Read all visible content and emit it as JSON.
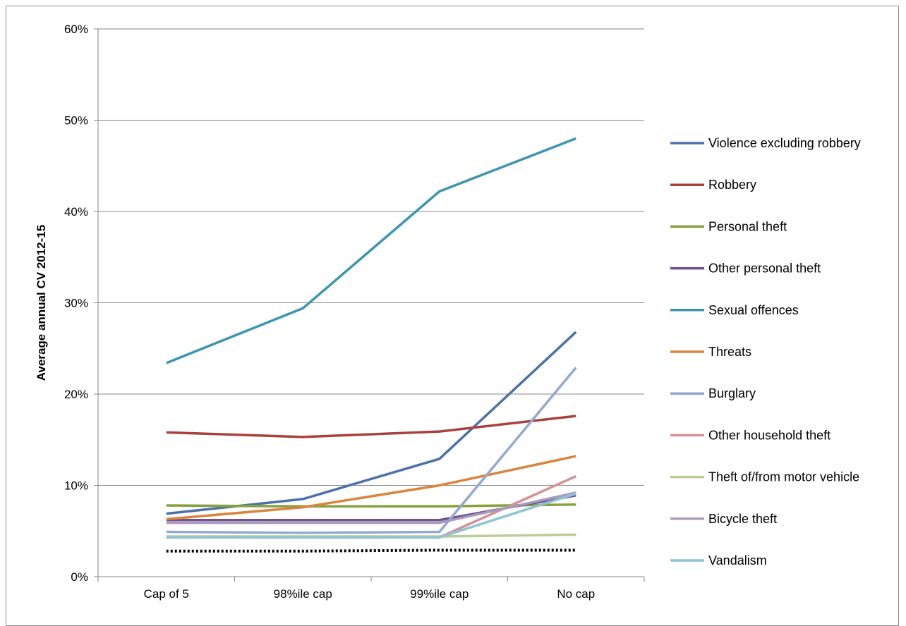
{
  "chart_data": {
    "type": "line",
    "title": "",
    "xlabel": "",
    "ylabel": "Average annual CV 2012-15",
    "ylim": [
      0,
      60
    ],
    "yticks": [
      "0%",
      "10%",
      "20%",
      "30%",
      "40%",
      "50%",
      "60%"
    ],
    "ytick_values": [
      0,
      10,
      20,
      30,
      40,
      50,
      60
    ],
    "categories": [
      "Cap of 5",
      "98%ile cap",
      "99%ile cap",
      "No cap"
    ],
    "grid": true,
    "legend_position": "right",
    "series": [
      {
        "name": "Violence excluding robbery",
        "color": "#4a72a8",
        "values": [
          6.9,
          8.5,
          12.9,
          26.8
        ]
      },
      {
        "name": "Robbery",
        "color": "#a8423f",
        "values": [
          15.8,
          15.3,
          15.9,
          17.6
        ]
      },
      {
        "name": "Personal theft",
        "color": "#86a23e",
        "values": [
          7.8,
          7.7,
          7.7,
          7.9
        ]
      },
      {
        "name": "Other personal theft",
        "color": "#6e548d",
        "values": [
          6.2,
          6.2,
          6.2,
          8.9
        ]
      },
      {
        "name": "Sexual offences",
        "color": "#3d96ae",
        "values": [
          23.4,
          29.4,
          42.2,
          48.0
        ]
      },
      {
        "name": "Threats",
        "color": "#db843d",
        "values": [
          6.3,
          7.6,
          10.0,
          13.2
        ]
      },
      {
        "name": "Burglary",
        "color": "#93a9cf",
        "values": [
          4.9,
          4.8,
          4.9,
          22.9
        ]
      },
      {
        "name": "Other household theft",
        "color": "#d19392",
        "values": [
          4.3,
          4.3,
          4.3,
          11.0
        ]
      },
      {
        "name": "Theft of/from motor vehicle",
        "color": "#b9cd96",
        "values": [
          4.4,
          4.4,
          4.4,
          4.6
        ]
      },
      {
        "name": "Bicycle theft",
        "color": "#a99bbd",
        "values": [
          5.9,
          5.9,
          5.9,
          9.2
        ]
      },
      {
        "name": "Vandalism",
        "color": "#92c3d5",
        "values": [
          4.3,
          4.3,
          4.3,
          9.1
        ]
      }
    ],
    "reference_line": {
      "style": "dotted",
      "color": "#000000",
      "values": [
        2.8,
        2.8,
        2.9,
        2.9
      ]
    }
  }
}
